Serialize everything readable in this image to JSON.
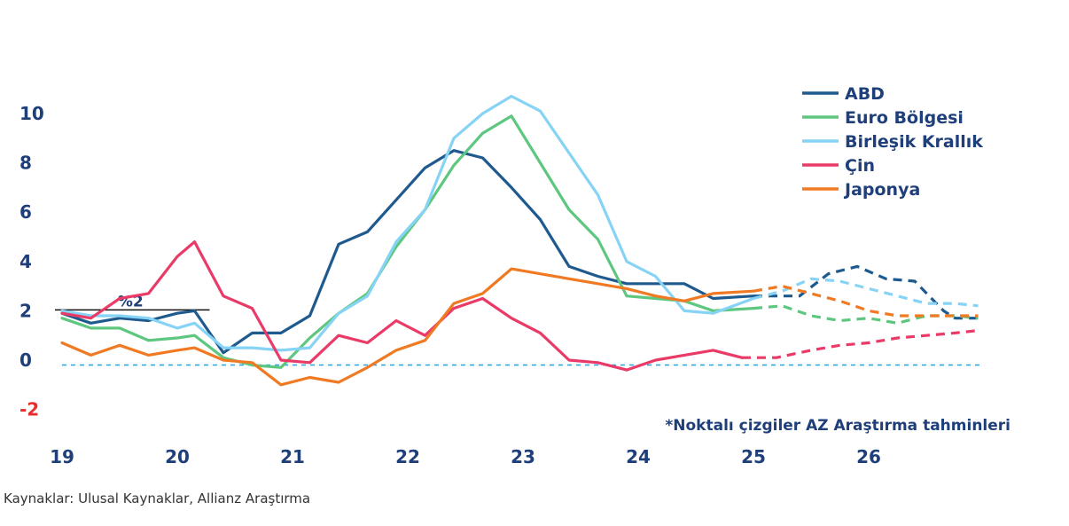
{
  "chart_data": {
    "type": "line",
    "title": "",
    "xlabel": "",
    "ylabel": "",
    "ylim": [
      -2,
      10
    ],
    "xlim": [
      2019,
      2027
    ],
    "yticks": [
      -2,
      0,
      2,
      4,
      6,
      8,
      10
    ],
    "yticks_labels": [
      "-2",
      "0",
      "2",
      "4",
      "6",
      "8",
      "10"
    ],
    "xticks": [
      2019,
      2020,
      2021,
      2022,
      2023,
      2024,
      2025,
      2026
    ],
    "xticks_labels": [
      "19",
      "20",
      "21",
      "22",
      "23",
      "24",
      "25",
      "26"
    ],
    "forecast_start": 2025,
    "reference_lines": [
      {
        "value": 2,
        "label": "%2",
        "x_range": [
          2019,
          2020.25
        ]
      },
      {
        "value": -0.2,
        "label": "",
        "style": "dashed"
      }
    ],
    "series": [
      {
        "name": "ABD",
        "color": "#1f5a8e",
        "points": [
          [
            2019,
            1.9
          ],
          [
            2019.25,
            1.5
          ],
          [
            2019.5,
            1.7
          ],
          [
            2019.75,
            1.6
          ],
          [
            2020,
            1.9
          ],
          [
            2020.15,
            2.0
          ],
          [
            2020.4,
            0.3
          ],
          [
            2020.65,
            1.1
          ],
          [
            2020.9,
            1.1
          ],
          [
            2021.15,
            1.8
          ],
          [
            2021.4,
            4.7
          ],
          [
            2021.65,
            5.2
          ],
          [
            2021.9,
            6.5
          ],
          [
            2022.15,
            7.8
          ],
          [
            2022.4,
            8.5
          ],
          [
            2022.65,
            8.2
          ],
          [
            2022.9,
            7.0
          ],
          [
            2023.15,
            5.7
          ],
          [
            2023.4,
            3.8
          ],
          [
            2023.65,
            3.4
          ],
          [
            2023.9,
            3.1
          ],
          [
            2024.15,
            3.1
          ],
          [
            2024.4,
            3.1
          ],
          [
            2024.65,
            2.5
          ],
          [
            2025,
            2.6
          ],
          [
            2025.25,
            2.6
          ],
          [
            2025.4,
            2.6
          ],
          [
            2025.65,
            3.5
          ],
          [
            2025.9,
            3.8
          ],
          [
            2026.15,
            3.3
          ],
          [
            2026.4,
            3.2
          ],
          [
            2026.65,
            2.0
          ],
          [
            2026.75,
            1.7
          ],
          [
            2026.95,
            1.7
          ]
        ]
      },
      {
        "name": "Euro Bölgesi",
        "color": "#5ec77f",
        "points": [
          [
            2019,
            1.7
          ],
          [
            2019.25,
            1.3
          ],
          [
            2019.5,
            1.3
          ],
          [
            2019.75,
            0.8
          ],
          [
            2020,
            0.9
          ],
          [
            2020.15,
            1.0
          ],
          [
            2020.4,
            0.1
          ],
          [
            2020.65,
            -0.2
          ],
          [
            2020.9,
            -0.3
          ],
          [
            2021.15,
            0.9
          ],
          [
            2021.4,
            1.9
          ],
          [
            2021.65,
            2.7
          ],
          [
            2021.9,
            4.6
          ],
          [
            2022.15,
            6.1
          ],
          [
            2022.4,
            7.9
          ],
          [
            2022.65,
            9.2
          ],
          [
            2022.9,
            9.9
          ],
          [
            2023.15,
            8.0
          ],
          [
            2023.4,
            6.1
          ],
          [
            2023.65,
            4.9
          ],
          [
            2023.9,
            2.6
          ],
          [
            2024.15,
            2.5
          ],
          [
            2024.4,
            2.4
          ],
          [
            2024.65,
            2.0
          ],
          [
            2025,
            2.1
          ],
          [
            2025.25,
            2.2
          ],
          [
            2025.5,
            1.8
          ],
          [
            2025.75,
            1.6
          ],
          [
            2026,
            1.7
          ],
          [
            2026.25,
            1.5
          ],
          [
            2026.5,
            1.8
          ],
          [
            2026.75,
            1.8
          ],
          [
            2026.95,
            1.7
          ]
        ]
      },
      {
        "name": "Birleşik Krallık",
        "color": "#86d3f5",
        "points": [
          [
            2019,
            2.0
          ],
          [
            2019.25,
            1.8
          ],
          [
            2019.5,
            1.8
          ],
          [
            2019.75,
            1.7
          ],
          [
            2020,
            1.3
          ],
          [
            2020.15,
            1.5
          ],
          [
            2020.4,
            0.5
          ],
          [
            2020.65,
            0.5
          ],
          [
            2020.9,
            0.4
          ],
          [
            2021.15,
            0.5
          ],
          [
            2021.4,
            1.9
          ],
          [
            2021.65,
            2.6
          ],
          [
            2021.9,
            4.8
          ],
          [
            2022.15,
            6.1
          ],
          [
            2022.4,
            9.0
          ],
          [
            2022.65,
            10.0
          ],
          [
            2022.9,
            10.7
          ],
          [
            2023.15,
            10.1
          ],
          [
            2023.4,
            8.4
          ],
          [
            2023.65,
            6.7
          ],
          [
            2023.9,
            4.0
          ],
          [
            2024.15,
            3.4
          ],
          [
            2024.4,
            2.0
          ],
          [
            2024.65,
            1.9
          ],
          [
            2025,
            2.5
          ],
          [
            2025.25,
            2.8
          ],
          [
            2025.5,
            3.3
          ],
          [
            2025.75,
            3.2
          ],
          [
            2026,
            2.9
          ],
          [
            2026.25,
            2.6
          ],
          [
            2026.5,
            2.3
          ],
          [
            2026.75,
            2.3
          ],
          [
            2026.95,
            2.2
          ]
        ]
      },
      {
        "name": "Çin",
        "color": "#ea3a67",
        "points": [
          [
            2019,
            1.9
          ],
          [
            2019.25,
            1.7
          ],
          [
            2019.5,
            2.5
          ],
          [
            2019.75,
            2.7
          ],
          [
            2020,
            4.2
          ],
          [
            2020.15,
            4.8
          ],
          [
            2020.4,
            2.6
          ],
          [
            2020.65,
            2.1
          ],
          [
            2020.9,
            0.0
          ],
          [
            2021.15,
            -0.1
          ],
          [
            2021.4,
            1.0
          ],
          [
            2021.65,
            0.7
          ],
          [
            2021.9,
            1.6
          ],
          [
            2022.15,
            1.0
          ],
          [
            2022.4,
            2.1
          ],
          [
            2022.65,
            2.5
          ],
          [
            2022.9,
            1.7
          ],
          [
            2023.15,
            1.1
          ],
          [
            2023.4,
            0.0
          ],
          [
            2023.65,
            -0.1
          ],
          [
            2023.9,
            -0.4
          ],
          [
            2024.15,
            0.0
          ],
          [
            2024.4,
            0.2
          ],
          [
            2024.65,
            0.4
          ],
          [
            2024.9,
            0.1
          ],
          [
            2025.2,
            0.1
          ],
          [
            2025.5,
            0.4
          ],
          [
            2025.75,
            0.6
          ],
          [
            2026,
            0.7
          ],
          [
            2026.25,
            0.9
          ],
          [
            2026.5,
            1.0
          ],
          [
            2026.75,
            1.1
          ],
          [
            2026.95,
            1.2
          ]
        ]
      },
      {
        "name": "Japonya",
        "color": "#f07a23",
        "points": [
          [
            2019,
            0.7
          ],
          [
            2019.25,
            0.2
          ],
          [
            2019.5,
            0.6
          ],
          [
            2019.75,
            0.2
          ],
          [
            2020,
            0.4
          ],
          [
            2020.15,
            0.5
          ],
          [
            2020.4,
            0.0
          ],
          [
            2020.65,
            -0.1
          ],
          [
            2020.9,
            -1.0
          ],
          [
            2021.15,
            -0.7
          ],
          [
            2021.4,
            -0.9
          ],
          [
            2021.65,
            -0.3
          ],
          [
            2021.9,
            0.4
          ],
          [
            2022.15,
            0.8
          ],
          [
            2022.4,
            2.3
          ],
          [
            2022.65,
            2.7
          ],
          [
            2022.9,
            3.7
          ],
          [
            2023.15,
            3.5
          ],
          [
            2023.4,
            3.3
          ],
          [
            2023.65,
            3.1
          ],
          [
            2023.9,
            2.9
          ],
          [
            2024.15,
            2.6
          ],
          [
            2024.4,
            2.4
          ],
          [
            2024.65,
            2.7
          ],
          [
            2025,
            2.8
          ],
          [
            2025.25,
            3.0
          ],
          [
            2025.5,
            2.7
          ],
          [
            2025.75,
            2.4
          ],
          [
            2026,
            2.0
          ],
          [
            2026.25,
            1.8
          ],
          [
            2026.5,
            1.8
          ],
          [
            2026.75,
            1.8
          ],
          [
            2026.95,
            1.8
          ]
        ]
      }
    ],
    "annotation": "*Noktalı çizgiler AZ Araştırma tahminleri",
    "legend_position": "top-right",
    "grid": false
  },
  "source": "Kaynaklar: Ulusal Kaynaklar, Allianz Araştırma",
  "colors": {
    "axis_text": "#1f3f7a",
    "negative_tick": "#e5302d",
    "zero_line": "#2f9fd6"
  }
}
